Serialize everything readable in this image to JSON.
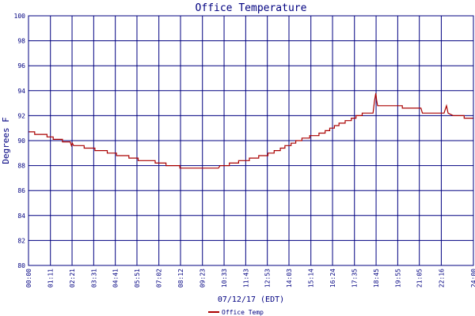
{
  "chart_data": {
    "type": "line",
    "title": "Office Temperature",
    "xlabel": "07/12/17 (EDT)",
    "ylabel": "Degrees F",
    "ylim": [
      80,
      100
    ],
    "grid": true,
    "legend_position": "bottom-left",
    "colors": {
      "background": "#ffffff",
      "grid": "#000080",
      "axis_text": "#000080",
      "series": "#aa0000"
    },
    "y_ticks": [
      "80",
      "82",
      "84",
      "86",
      "88",
      "90",
      "92",
      "94",
      "96",
      "98",
      "100"
    ],
    "x_ticks": [
      "00:00",
      "01:11",
      "02:21",
      "03:31",
      "04:41",
      "05:51",
      "07:02",
      "08:12",
      "09:23",
      "10:33",
      "11:43",
      "12:53",
      "14:03",
      "15:14",
      "16:24",
      "17:35",
      "18:45",
      "19:55",
      "21:05",
      "22:16",
      "24:00"
    ],
    "series": [
      {
        "name": "Office Temp",
        "points": [
          [
            "00:00",
            90.7
          ],
          [
            "00:20",
            90.7
          ],
          [
            "00:20",
            90.5
          ],
          [
            "01:00",
            90.5
          ],
          [
            "01:00",
            90.3
          ],
          [
            "01:20",
            90.3
          ],
          [
            "01:20",
            90.1
          ],
          [
            "01:50",
            90.1
          ],
          [
            "01:50",
            89.9
          ],
          [
            "02:15",
            89.9
          ],
          [
            "02:19",
            89.6
          ],
          [
            "02:22",
            89.8
          ],
          [
            "02:26",
            89.6
          ],
          [
            "03:00",
            89.6
          ],
          [
            "03:00",
            89.4
          ],
          [
            "03:35",
            89.4
          ],
          [
            "03:35",
            89.2
          ],
          [
            "04:15",
            89.2
          ],
          [
            "04:15",
            89.0
          ],
          [
            "04:45",
            89.0
          ],
          [
            "04:45",
            88.8
          ],
          [
            "05:25",
            88.8
          ],
          [
            "05:25",
            88.6
          ],
          [
            "05:55",
            88.6
          ],
          [
            "05:55",
            88.4
          ],
          [
            "06:50",
            88.4
          ],
          [
            "06:50",
            88.2
          ],
          [
            "07:25",
            88.2
          ],
          [
            "07:25",
            88.0
          ],
          [
            "08:10",
            88.0
          ],
          [
            "08:10",
            87.8
          ],
          [
            "10:15",
            87.8
          ],
          [
            "10:20",
            88.0
          ],
          [
            "10:50",
            88.0
          ],
          [
            "10:50",
            88.2
          ],
          [
            "11:20",
            88.2
          ],
          [
            "11:20",
            88.4
          ],
          [
            "11:55",
            88.4
          ],
          [
            "11:55",
            88.6
          ],
          [
            "12:25",
            88.6
          ],
          [
            "12:25",
            88.8
          ],
          [
            "12:55",
            88.8
          ],
          [
            "12:55",
            89.0
          ],
          [
            "13:15",
            89.0
          ],
          [
            "13:15",
            89.2
          ],
          [
            "13:35",
            89.2
          ],
          [
            "13:35",
            89.4
          ],
          [
            "13:50",
            89.4
          ],
          [
            "13:50",
            89.6
          ],
          [
            "14:10",
            89.6
          ],
          [
            "14:10",
            89.8
          ],
          [
            "14:25",
            89.8
          ],
          [
            "14:25",
            90.0
          ],
          [
            "14:45",
            90.0
          ],
          [
            "14:45",
            90.2
          ],
          [
            "15:10",
            90.2
          ],
          [
            "15:10",
            90.4
          ],
          [
            "15:40",
            90.4
          ],
          [
            "15:40",
            90.6
          ],
          [
            "16:00",
            90.6
          ],
          [
            "16:00",
            90.8
          ],
          [
            "16:15",
            90.8
          ],
          [
            "16:15",
            91.0
          ],
          [
            "16:30",
            91.0
          ],
          [
            "16:30",
            91.2
          ],
          [
            "16:45",
            91.2
          ],
          [
            "16:45",
            91.4
          ],
          [
            "17:05",
            91.4
          ],
          [
            "17:05",
            91.6
          ],
          [
            "17:25",
            91.6
          ],
          [
            "17:25",
            91.8
          ],
          [
            "17:40",
            91.8
          ],
          [
            "17:40",
            92.0
          ],
          [
            "18:00",
            92.0
          ],
          [
            "18:00",
            92.2
          ],
          [
            "18:35",
            92.2
          ],
          [
            "18:40",
            93.2
          ],
          [
            "18:44",
            93.8
          ],
          [
            "18:47",
            93.2
          ],
          [
            "18:50",
            92.8
          ],
          [
            "20:10",
            92.8
          ],
          [
            "20:10",
            92.6
          ],
          [
            "21:10",
            92.6
          ],
          [
            "21:15",
            92.2
          ],
          [
            "22:25",
            92.2
          ],
          [
            "22:33",
            92.8
          ],
          [
            "22:38",
            92.2
          ],
          [
            "22:55",
            92.0
          ],
          [
            "23:30",
            92.0
          ],
          [
            "23:30",
            91.8
          ],
          [
            "24:00",
            91.8
          ]
        ]
      }
    ]
  }
}
